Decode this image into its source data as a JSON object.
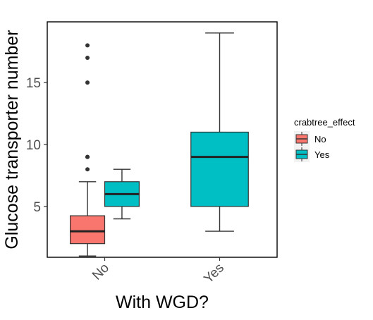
{
  "chart_data": {
    "type": "boxplot",
    "xlabel": "With WGD?",
    "ylabel": "Glucose transporter number",
    "categories": [
      "No",
      "Yes"
    ],
    "ylim": [
      0.9,
      19.9
    ],
    "yticks": [
      5,
      10,
      15
    ],
    "grid": false,
    "legend": {
      "title": "crabtree_effect",
      "position": "right",
      "entries": [
        {
          "label": "No",
          "color": "#F8766D"
        },
        {
          "label": "Yes",
          "color": "#00BFC4"
        }
      ]
    },
    "series": [
      {
        "name": "No",
        "color": "#F8766D",
        "boxes": [
          {
            "category": "No",
            "whisker_low": 1,
            "q1": 2,
            "median": 3,
            "q3": 4.25,
            "whisker_high": 7,
            "outliers": [
              8,
              9,
              9,
              15,
              17,
              18
            ]
          }
        ]
      },
      {
        "name": "Yes",
        "color": "#00BFC4",
        "boxes": [
          {
            "category": "No",
            "whisker_low": 4,
            "q1": 5,
            "median": 6,
            "q3": 7,
            "whisker_high": 8,
            "outliers": []
          },
          {
            "category": "Yes",
            "whisker_low": 3,
            "q1": 5,
            "median": 9,
            "q3": 11,
            "whisker_high": 19,
            "outliers": []
          }
        ]
      }
    ]
  }
}
